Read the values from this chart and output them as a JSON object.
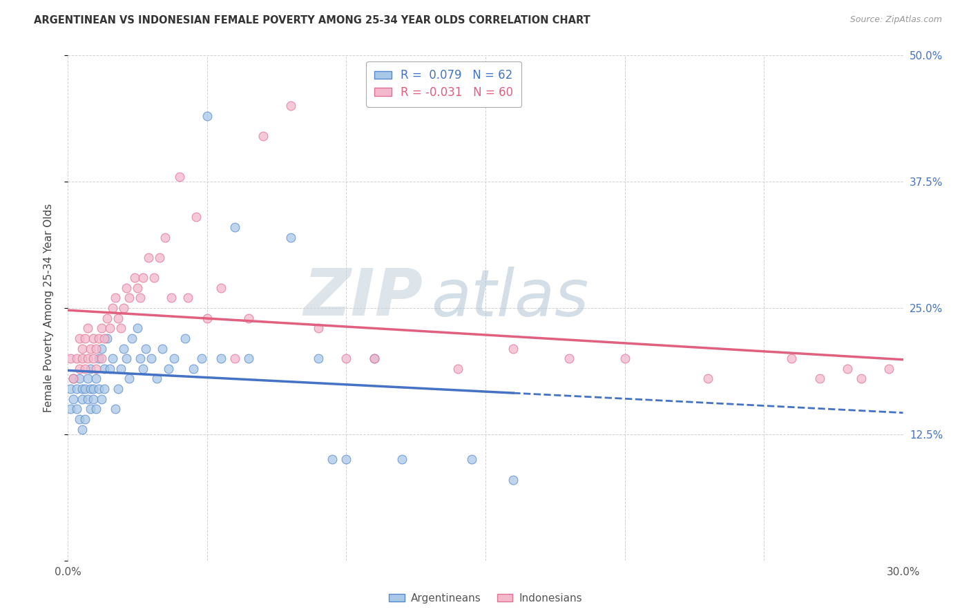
{
  "title": "ARGENTINEAN VS INDONESIAN FEMALE POVERTY AMONG 25-34 YEAR OLDS CORRELATION CHART",
  "source": "Source: ZipAtlas.com",
  "ylabel": "Female Poverty Among 25-34 Year Olds",
  "x_min": 0.0,
  "x_max": 0.3,
  "y_min": 0.0,
  "y_max": 0.5,
  "x_ticks": [
    0.0,
    0.05,
    0.1,
    0.15,
    0.2,
    0.25,
    0.3
  ],
  "y_ticks": [
    0.0,
    0.125,
    0.25,
    0.375,
    0.5
  ],
  "y_tick_labels_right": [
    "",
    "12.5%",
    "25.0%",
    "37.5%",
    "50.0%"
  ],
  "legend_r_arg": "0.079",
  "legend_n_arg": "62",
  "legend_r_ind": "-0.031",
  "legend_n_ind": "60",
  "color_arg_fill": "#A8C8E8",
  "color_arg_edge": "#5588CC",
  "color_ind_fill": "#F4B8CC",
  "color_ind_edge": "#E07090",
  "color_arg_line": "#4472C4",
  "color_ind_line": "#E06080",
  "watermark_zip": "#C8D8E8",
  "watermark_atlas": "#A8C0D8",
  "arg_x": [
    0.001,
    0.001,
    0.002,
    0.002,
    0.003,
    0.003,
    0.004,
    0.004,
    0.005,
    0.005,
    0.005,
    0.006,
    0.006,
    0.007,
    0.007,
    0.008,
    0.008,
    0.008,
    0.009,
    0.009,
    0.01,
    0.01,
    0.011,
    0.011,
    0.012,
    0.012,
    0.013,
    0.013,
    0.014,
    0.015,
    0.016,
    0.017,
    0.018,
    0.019,
    0.02,
    0.021,
    0.022,
    0.023,
    0.025,
    0.026,
    0.027,
    0.028,
    0.03,
    0.032,
    0.034,
    0.036,
    0.038,
    0.042,
    0.045,
    0.048,
    0.05,
    0.055,
    0.06,
    0.065,
    0.08,
    0.09,
    0.095,
    0.1,
    0.11,
    0.12,
    0.145,
    0.16
  ],
  "arg_y": [
    0.17,
    0.15,
    0.18,
    0.16,
    0.17,
    0.15,
    0.18,
    0.14,
    0.17,
    0.16,
    0.13,
    0.17,
    0.14,
    0.16,
    0.18,
    0.17,
    0.15,
    0.19,
    0.16,
    0.17,
    0.18,
    0.15,
    0.17,
    0.2,
    0.16,
    0.21,
    0.19,
    0.17,
    0.22,
    0.19,
    0.2,
    0.15,
    0.17,
    0.19,
    0.21,
    0.2,
    0.18,
    0.22,
    0.23,
    0.2,
    0.19,
    0.21,
    0.2,
    0.18,
    0.21,
    0.19,
    0.2,
    0.22,
    0.19,
    0.2,
    0.44,
    0.2,
    0.33,
    0.2,
    0.32,
    0.2,
    0.1,
    0.1,
    0.2,
    0.1,
    0.1,
    0.08
  ],
  "ind_x": [
    0.001,
    0.002,
    0.003,
    0.004,
    0.004,
    0.005,
    0.005,
    0.006,
    0.006,
    0.007,
    0.007,
    0.008,
    0.009,
    0.009,
    0.01,
    0.01,
    0.011,
    0.012,
    0.012,
    0.013,
    0.014,
    0.015,
    0.016,
    0.017,
    0.018,
    0.019,
    0.02,
    0.021,
    0.022,
    0.024,
    0.025,
    0.026,
    0.027,
    0.029,
    0.031,
    0.033,
    0.035,
    0.037,
    0.04,
    0.043,
    0.046,
    0.05,
    0.055,
    0.06,
    0.065,
    0.07,
    0.08,
    0.09,
    0.1,
    0.11,
    0.14,
    0.16,
    0.18,
    0.2,
    0.23,
    0.26,
    0.27,
    0.28,
    0.285,
    0.295
  ],
  "ind_y": [
    0.2,
    0.18,
    0.2,
    0.19,
    0.22,
    0.2,
    0.21,
    0.19,
    0.22,
    0.2,
    0.23,
    0.21,
    0.2,
    0.22,
    0.19,
    0.21,
    0.22,
    0.2,
    0.23,
    0.22,
    0.24,
    0.23,
    0.25,
    0.26,
    0.24,
    0.23,
    0.25,
    0.27,
    0.26,
    0.28,
    0.27,
    0.26,
    0.28,
    0.3,
    0.28,
    0.3,
    0.32,
    0.26,
    0.38,
    0.26,
    0.34,
    0.24,
    0.27,
    0.2,
    0.24,
    0.42,
    0.45,
    0.23,
    0.2,
    0.2,
    0.19,
    0.21,
    0.2,
    0.2,
    0.18,
    0.2,
    0.18,
    0.19,
    0.18,
    0.19
  ]
}
